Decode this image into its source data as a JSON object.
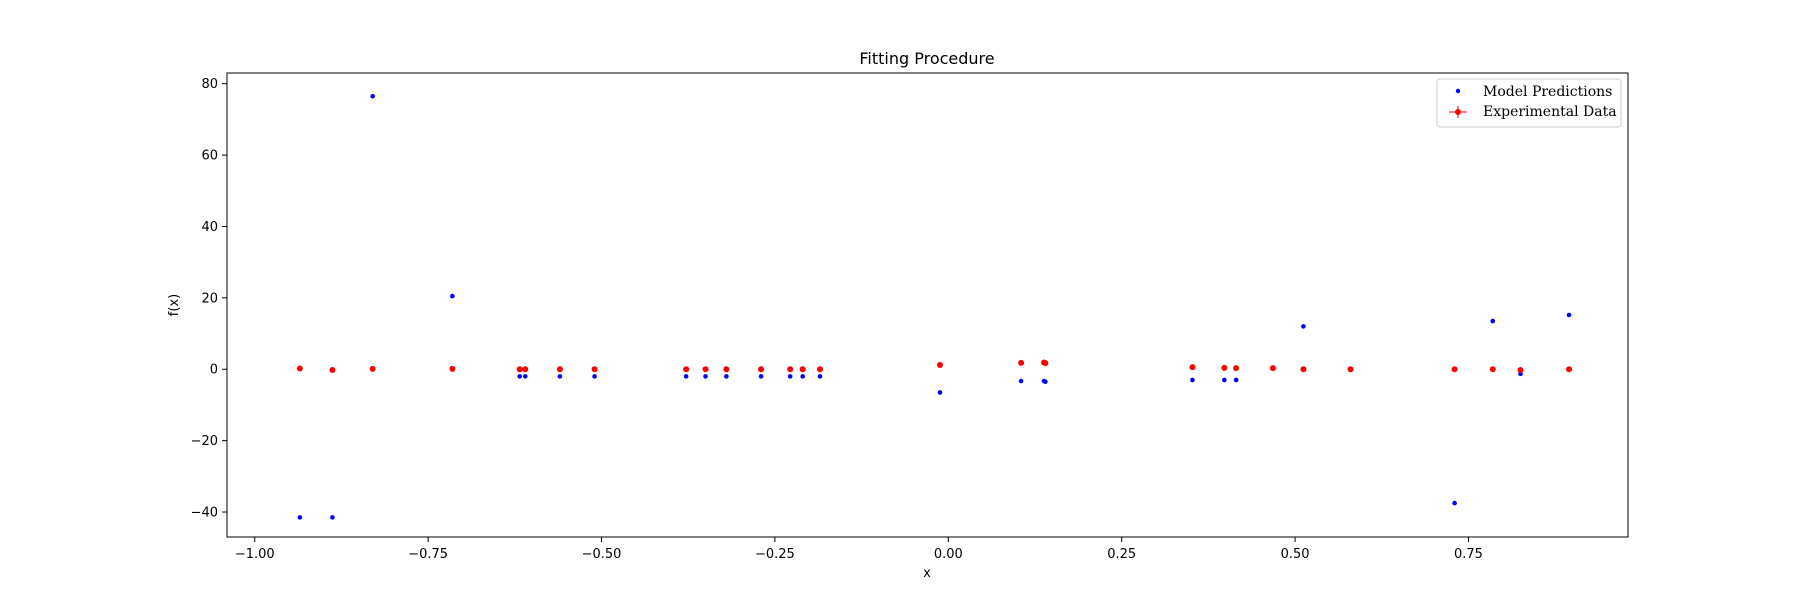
{
  "chart_data": {
    "type": "scatter",
    "title": "Fitting Procedure",
    "xlabel": "x",
    "ylabel": "f(x)",
    "xlim": [
      -1.04,
      0.98
    ],
    "ylim": [
      -47,
      83
    ],
    "xticks": [
      -1.0,
      -0.75,
      -0.5,
      -0.25,
      0.0,
      0.25,
      0.5,
      0.75
    ],
    "xtick_labels": [
      "−1.00",
      "−0.75",
      "−0.50",
      "−0.25",
      "0.00",
      "0.25",
      "0.50",
      "0.75"
    ],
    "yticks": [
      -40,
      -20,
      0,
      20,
      40,
      60,
      80
    ],
    "ytick_labels": [
      "−40",
      "−20",
      "0",
      "20",
      "40",
      "60",
      "80"
    ],
    "grid": false,
    "legend_position": "top-right",
    "series": [
      {
        "name": "Model Predictions",
        "color": "#0000ff",
        "marker": "dot",
        "x": [
          -0.935,
          -0.888,
          -0.83,
          -0.715,
          -0.618,
          -0.61,
          -0.56,
          -0.51,
          -0.378,
          -0.35,
          -0.32,
          -0.27,
          -0.228,
          -0.21,
          -0.185,
          -0.012,
          0.105,
          0.138,
          0.14,
          0.352,
          0.398,
          0.415,
          0.512,
          0.73,
          0.785,
          0.825,
          0.895
        ],
        "y": [
          -41.5,
          -41.5,
          76.5,
          20.5,
          -2,
          -2,
          -2,
          -2,
          -2,
          -2,
          -2,
          -2,
          -2,
          -2,
          -2,
          -6.5,
          -3.3,
          -3.3,
          -3.5,
          -3,
          -3,
          -3,
          12,
          -37.5,
          13.5,
          -1.3,
          15.2
        ]
      },
      {
        "name": "Experimental Data",
        "color": "#ff0000",
        "marker": "errorbar",
        "x": [
          -0.935,
          -0.888,
          -0.83,
          -0.715,
          -0.618,
          -0.61,
          -0.56,
          -0.51,
          -0.378,
          -0.35,
          -0.32,
          -0.27,
          -0.228,
          -0.21,
          -0.185,
          -0.012,
          0.105,
          0.138,
          0.14,
          0.352,
          0.398,
          0.415,
          0.468,
          0.512,
          0.58,
          0.73,
          0.785,
          0.825,
          0.895
        ],
        "y": [
          0.2,
          -0.2,
          0.1,
          0.1,
          0,
          0,
          0,
          0,
          0,
          0,
          0,
          0,
          0,
          0,
          0,
          1.2,
          1.8,
          1.9,
          1.7,
          0.6,
          0.4,
          0.3,
          0.3,
          0,
          0,
          0,
          0,
          -0.2,
          0
        ]
      }
    ]
  }
}
